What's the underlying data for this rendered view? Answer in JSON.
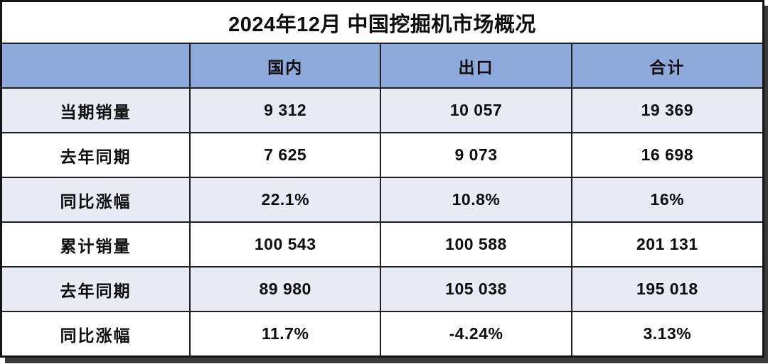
{
  "title": "2024年12月 中国挖掘机市场概况",
  "colors": {
    "header_bg": "#8EA9DB",
    "row_alt_bg": "#E9EBF4",
    "row_bg": "#FFFFFF",
    "border": "#1F1F1F",
    "shadow": "#3B3B3B",
    "text": "#0D0D0D"
  },
  "chart_data": {
    "type": "table",
    "title": "2024年12月 中国挖掘机市场概况",
    "columns": [
      "",
      "国内",
      "出口",
      "合计"
    ],
    "rows": [
      {
        "label": "当期销量",
        "values": [
          "9 312",
          "10 057",
          "19 369"
        ]
      },
      {
        "label": "去年同期",
        "values": [
          "7 625",
          "9 073",
          "16 698"
        ]
      },
      {
        "label": "同比涨幅",
        "values": [
          "22.1%",
          "10.8%",
          "16%"
        ]
      },
      {
        "label": "累计销量",
        "values": [
          "100 543",
          "100 588",
          "201 131"
        ]
      },
      {
        "label": "去年同期",
        "values": [
          "89 980",
          "105 038",
          "195 018"
        ]
      },
      {
        "label": "同比涨幅",
        "values": [
          "11.7%",
          "-4.24%",
          "3.13%"
        ]
      }
    ]
  }
}
